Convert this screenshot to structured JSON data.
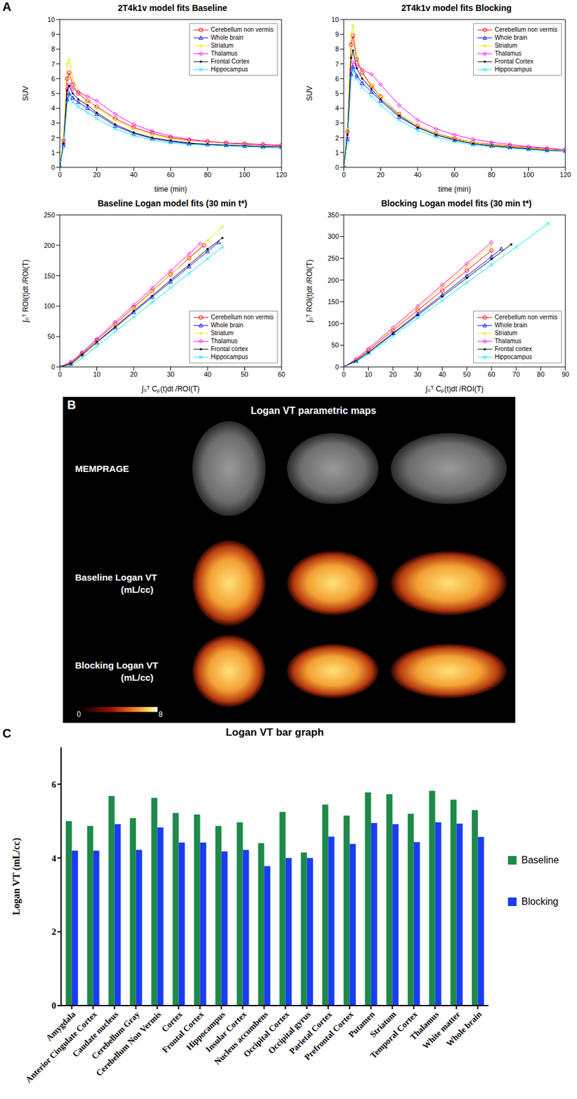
{
  "panel_labels": [
    "A",
    "B",
    "C"
  ],
  "chart_data": [
    {
      "type": "line",
      "title": "2T4k1v model fits Baseline",
      "x_label": "time (min)",
      "y_label": "SUV",
      "x": [
        0,
        2,
        4,
        5,
        7,
        10,
        15,
        20,
        30,
        40,
        50,
        60,
        70,
        80,
        90,
        100,
        110,
        120
      ],
      "xlim": [
        0,
        120
      ],
      "xticks": [
        0,
        20,
        40,
        60,
        80,
        100,
        120
      ],
      "ylim": [
        0,
        10
      ],
      "yticks": [
        0,
        1,
        2,
        3,
        4,
        5,
        6,
        7,
        8,
        9,
        10
      ],
      "legend": "upper right",
      "series": [
        {
          "name": "Cerebellum non vermis",
          "color": "#ff0000",
          "marker": "circle",
          "values": [
            0,
            1.8,
            6.0,
            6.4,
            5.6,
            5.0,
            4.5,
            4.1,
            3.3,
            2.7,
            2.3,
            2.0,
            1.85,
            1.75,
            1.65,
            1.6,
            1.55,
            1.5
          ]
        },
        {
          "name": "Whole brain",
          "color": "#0000ff",
          "marker": "triangle",
          "values": [
            0,
            1.5,
            4.6,
            5.0,
            4.7,
            4.4,
            4.0,
            3.6,
            2.8,
            2.3,
            1.95,
            1.75,
            1.6,
            1.55,
            1.5,
            1.45,
            1.4,
            1.38
          ]
        },
        {
          "name": "Striatum",
          "color": "#e6e600",
          "marker": "plus",
          "values": [
            0,
            2.0,
            7.0,
            7.3,
            6.0,
            5.2,
            4.6,
            4.0,
            3.2,
            2.6,
            2.2,
            1.95,
            1.8,
            1.7,
            1.6,
            1.55,
            1.5,
            1.45
          ]
        },
        {
          "name": "Thalamus",
          "color": "#ff00ff",
          "marker": "diamond",
          "values": [
            0,
            1.6,
            5.3,
            5.6,
            5.3,
            5.1,
            4.8,
            4.5,
            3.6,
            2.9,
            2.45,
            2.1,
            1.9,
            1.75,
            1.65,
            1.55,
            1.5,
            1.45
          ]
        },
        {
          "name": "Frontal Cortex",
          "color": "#000000",
          "marker": "dot",
          "values": [
            0,
            1.6,
            5.2,
            5.5,
            5.0,
            4.6,
            4.2,
            3.7,
            2.9,
            2.35,
            2.0,
            1.8,
            1.65,
            1.55,
            1.5,
            1.45,
            1.4,
            1.38
          ]
        },
        {
          "name": "Hippocampus",
          "color": "#00e5ff",
          "marker": "cross",
          "values": [
            0,
            1.4,
            4.4,
            4.8,
            4.4,
            4.1,
            3.7,
            3.3,
            2.6,
            2.15,
            1.85,
            1.65,
            1.55,
            1.5,
            1.45,
            1.4,
            1.35,
            1.3
          ]
        }
      ]
    },
    {
      "type": "line",
      "title": "2T4k1v model fits Blocking",
      "x_label": "time (min)",
      "y_label": "SUV",
      "x": [
        0,
        2,
        4,
        5,
        7,
        10,
        15,
        20,
        30,
        40,
        50,
        60,
        70,
        80,
        90,
        100,
        110,
        120
      ],
      "xlim": [
        0,
        120
      ],
      "xticks": [
        0,
        20,
        40,
        60,
        80,
        100,
        120
      ],
      "ylim": [
        0,
        10
      ],
      "yticks": [
        0,
        1,
        2,
        3,
        4,
        5,
        6,
        7,
        8,
        9,
        10
      ],
      "legend": "upper right",
      "series": [
        {
          "name": "Cerebellum non vermis",
          "color": "#ff0000",
          "marker": "circle",
          "values": [
            0,
            2.4,
            8.3,
            8.9,
            7.3,
            6.4,
            5.5,
            4.8,
            3.6,
            2.8,
            2.3,
            1.95,
            1.7,
            1.55,
            1.45,
            1.35,
            1.25,
            1.2
          ]
        },
        {
          "name": "Whole brain",
          "color": "#0000ff",
          "marker": "triangle",
          "values": [
            0,
            1.9,
            6.3,
            6.8,
            6.2,
            5.7,
            5.1,
            4.5,
            3.4,
            2.7,
            2.2,
            1.85,
            1.6,
            1.45,
            1.35,
            1.25,
            1.15,
            1.1
          ]
        },
        {
          "name": "Striatum",
          "color": "#e6e600",
          "marker": "plus",
          "values": [
            0,
            2.6,
            9.0,
            9.6,
            7.5,
            6.5,
            5.6,
            4.8,
            3.6,
            2.8,
            2.3,
            1.9,
            1.7,
            1.5,
            1.4,
            1.3,
            1.2,
            1.15
          ]
        },
        {
          "name": "Thalamus",
          "color": "#ff00ff",
          "marker": "diamond",
          "values": [
            0,
            2.0,
            6.6,
            7.1,
            6.9,
            6.6,
            6.3,
            5.6,
            4.2,
            3.2,
            2.6,
            2.2,
            1.9,
            1.7,
            1.55,
            1.4,
            1.3,
            1.2
          ]
        },
        {
          "name": "Frontal Cortex",
          "color": "#000000",
          "marker": "dot",
          "values": [
            0,
            2.2,
            7.4,
            7.9,
            6.7,
            6.0,
            5.3,
            4.6,
            3.5,
            2.7,
            2.2,
            1.85,
            1.6,
            1.45,
            1.35,
            1.25,
            1.15,
            1.1
          ]
        },
        {
          "name": "Hippocampus",
          "color": "#00e5ff",
          "marker": "cross",
          "values": [
            0,
            1.8,
            6.1,
            6.6,
            6.0,
            5.4,
            4.8,
            4.2,
            3.2,
            2.5,
            2.05,
            1.75,
            1.5,
            1.4,
            1.3,
            1.2,
            1.12,
            1.08
          ]
        }
      ]
    },
    {
      "type": "line",
      "title": "Baseline Logan model fits (30 min t*)",
      "x_label": "∫₀ᵀ Cₚ(t)dt /ROI(T)",
      "y_label": "∫₀ᵀ ROI(t)dt /ROI(T)",
      "xlim": [
        0,
        60
      ],
      "xticks": [
        0,
        10,
        20,
        30,
        40,
        50,
        60
      ],
      "ylim": [
        0,
        250
      ],
      "yticks": [
        0,
        50,
        100,
        150,
        200,
        250
      ],
      "legend": "lower right",
      "series": [
        {
          "name": "Cerebellum non vermis",
          "color": "#ff0000",
          "marker": "circle",
          "x": [
            0,
            3,
            6,
            10,
            15,
            20,
            25,
            30,
            35,
            39
          ],
          "values": [
            0,
            7,
            22,
            44,
            71,
            98,
            125,
            152,
            179,
            200
          ]
        },
        {
          "name": "Whole brain",
          "color": "#0000ff",
          "marker": "triangle",
          "x": [
            0,
            3,
            6,
            10,
            15,
            20,
            25,
            30,
            35,
            40,
            43
          ],
          "values": [
            0,
            5,
            20,
            40,
            65,
            90,
            115,
            140,
            165,
            190,
            205
          ]
        },
        {
          "name": "Striatum",
          "color": "#e6e600",
          "marker": "plus",
          "x": [
            0,
            3,
            6,
            10,
            15,
            20,
            25,
            30,
            35,
            40,
            44
          ],
          "values": [
            0,
            4,
            18,
            40,
            68,
            96,
            124,
            152,
            180,
            208,
            230
          ]
        },
        {
          "name": "Thalamus",
          "color": "#ff00ff",
          "marker": "diamond",
          "x": [
            0,
            3,
            6,
            10,
            15,
            20,
            25,
            30,
            35,
            38
          ],
          "values": [
            0,
            8,
            24,
            46,
            74,
            102,
            130,
            158,
            186,
            203
          ]
        },
        {
          "name": "Frontal cortex",
          "color": "#000000",
          "marker": "dot",
          "x": [
            0,
            3,
            6,
            10,
            15,
            20,
            25,
            30,
            35,
            40,
            44
          ],
          "values": [
            0,
            5,
            20,
            41,
            66,
            92,
            117,
            143,
            168,
            194,
            212
          ]
        },
        {
          "name": "Hippocampus",
          "color": "#00e5ff",
          "marker": "cross",
          "x": [
            0,
            3,
            6,
            10,
            15,
            20,
            25,
            30,
            35,
            40,
            44
          ],
          "values": [
            0,
            1,
            15,
            34,
            58,
            82,
            106,
            130,
            154,
            178,
            197
          ]
        }
      ]
    },
    {
      "type": "line",
      "title": "Blocking Logan model fits (30 min t*)",
      "x_label": "∫₀ᵀ Cₚ(t)dt /ROI(T)",
      "y_label": "∫₀ᵀ ROI(t)dt /ROI(T)",
      "xlim": [
        0,
        90
      ],
      "xticks": [
        0,
        10,
        20,
        30,
        40,
        50,
        60,
        70,
        80,
        90
      ],
      "ylim": [
        0,
        350
      ],
      "yticks": [
        0,
        50,
        100,
        150,
        200,
        250,
        300,
        350
      ],
      "legend": "lower right",
      "series": [
        {
          "name": "Cerebellum non vermis",
          "color": "#ff0000",
          "marker": "circle",
          "x": [
            0,
            5,
            10,
            20,
            30,
            40,
            50,
            60
          ],
          "values": [
            0,
            16,
            38,
            84,
            130,
            176,
            222,
            268
          ]
        },
        {
          "name": "Whole brain",
          "color": "#0000ff",
          "marker": "triangle",
          "x": [
            0,
            5,
            10,
            20,
            30,
            40,
            50,
            60,
            64
          ],
          "values": [
            0,
            14,
            34,
            78,
            122,
            166,
            210,
            254,
            272
          ]
        },
        {
          "name": "Striatum",
          "color": "#e6e600",
          "marker": "plus",
          "x": [
            0,
            5,
            10,
            20,
            30,
            40,
            50,
            60
          ],
          "values": [
            0,
            18,
            40,
            88,
            136,
            184,
            232,
            280
          ]
        },
        {
          "name": "Thalamus",
          "color": "#ff00ff",
          "marker": "diamond",
          "x": [
            0,
            5,
            10,
            20,
            30,
            40,
            50,
            60
          ],
          "values": [
            0,
            18,
            42,
            91,
            140,
            189,
            238,
            287
          ]
        },
        {
          "name": "Frontal cortex",
          "color": "#000000",
          "marker": "dot",
          "x": [
            0,
            5,
            10,
            20,
            30,
            40,
            50,
            60,
            68
          ],
          "values": [
            0,
            14,
            33,
            76,
            119,
            162,
            205,
            248,
            282
          ]
        },
        {
          "name": "Hippocampus",
          "color": "#00e5ff",
          "marker": "cross",
          "x": [
            0,
            5,
            10,
            20,
            30,
            40,
            50,
            60,
            70,
            83
          ],
          "values": [
            0,
            12,
            30,
            71,
            112,
            153,
            194,
            235,
            276,
            330
          ]
        }
      ]
    },
    {
      "type": "bar",
      "title": "Logan VT bar graph",
      "y_label": "Logan VT (mL/cc)",
      "categories": [
        "Amygdala",
        "Anterior Cingulate Cortex",
        "Caudate nucleus",
        "Cerebellum Gray",
        "Cerebellum Non Vermis",
        "Cortex",
        "Frontal Cortex",
        "Hippocampus",
        "Insular Cortex",
        "Nucleus accumbens",
        "Occipital Cortex",
        "Occipital gyrus",
        "Parietal Cortex",
        "Prefrontal Cortex",
        "Putamen",
        "Striatum",
        "Temporal Cortex",
        "Thalamus",
        "White matter",
        "Whole brain"
      ],
      "ylim": [
        0,
        7
      ],
      "yticks": [
        0,
        2,
        4,
        6
      ],
      "legend": "right",
      "series": [
        {
          "name": "Baseline",
          "color": "#1e8a4a",
          "values": [
            5.0,
            4.87,
            5.68,
            5.08,
            5.63,
            5.22,
            5.18,
            4.87,
            4.97,
            4.4,
            5.25,
            4.15,
            5.45,
            5.15,
            5.78,
            5.73,
            5.2,
            5.82,
            5.58,
            5.3
          ]
        },
        {
          "name": "Blocking",
          "color": "#1a3cf5",
          "values": [
            4.2,
            4.2,
            4.92,
            4.22,
            4.83,
            4.42,
            4.42,
            4.18,
            4.22,
            3.78,
            4.0,
            4.0,
            4.58,
            4.38,
            4.95,
            4.92,
            4.43,
            4.97,
            4.93,
            4.57
          ]
        }
      ]
    }
  ],
  "panel_b": {
    "title": "Logan VT parametric maps",
    "rows": [
      {
        "label": "MEMPRAGE",
        "unit": null
      },
      {
        "label": "Baseline Logan VT",
        "unit": "(mL/cc)"
      },
      {
        "label": "Blocking Logan VT",
        "unit": "(mL/cc)"
      }
    ],
    "colorbar_range": [
      0,
      8
    ]
  }
}
